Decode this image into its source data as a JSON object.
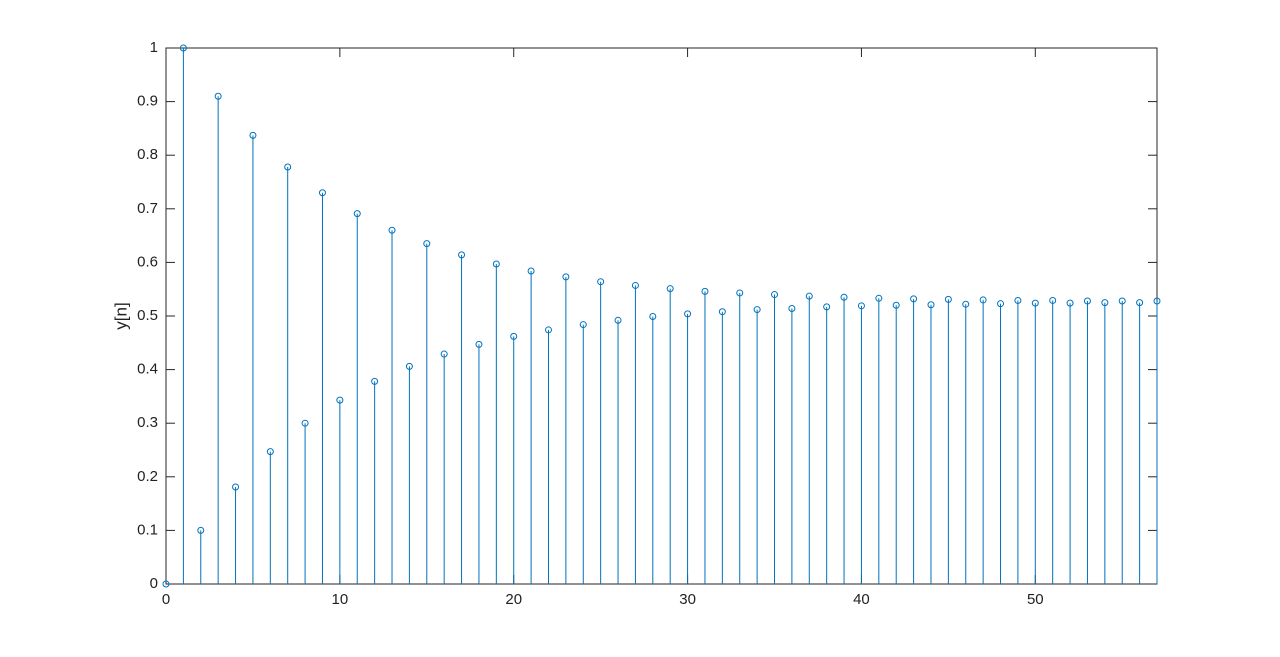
{
  "chart_data": {
    "type": "stem",
    "ylabel": "y[n]",
    "color": "#0072bd",
    "x": [
      0,
      1,
      2,
      3,
      4,
      5,
      6,
      7,
      8,
      9,
      10,
      11,
      12,
      13,
      14,
      15,
      16,
      17,
      18,
      19,
      20,
      21,
      22,
      23,
      24,
      25,
      26,
      27,
      28,
      29,
      30,
      31,
      32,
      33,
      34,
      35,
      36,
      37,
      38,
      39,
      40,
      41,
      42,
      43,
      44,
      45,
      46,
      47,
      48,
      49,
      50,
      51,
      52,
      53,
      54,
      55,
      56,
      57
    ],
    "values": [
      0,
      1,
      0.1,
      0.91,
      0.181,
      0.837,
      0.247,
      0.778,
      0.3,
      0.73,
      0.343,
      0.691,
      0.378,
      0.66,
      0.406,
      0.635,
      0.429,
      0.614,
      0.447,
      0.597,
      0.462,
      0.584,
      0.474,
      0.573,
      0.484,
      0.564,
      0.492,
      0.557,
      0.499,
      0.551,
      0.504,
      0.546,
      0.508,
      0.543,
      0.512,
      0.54,
      0.514,
      0.537,
      0.517,
      0.535,
      0.519,
      0.533,
      0.52,
      0.532,
      0.521,
      0.531,
      0.522,
      0.53,
      0.523,
      0.529,
      0.524,
      0.529,
      0.524,
      0.528,
      0.525,
      0.528,
      0.525,
      0.528
    ],
    "xlim": [
      0,
      57
    ],
    "xticks": [
      0,
      10,
      20,
      30,
      40,
      50
    ],
    "ylim": [
      0,
      1
    ],
    "yticks": [
      0,
      0.1,
      0.2,
      0.3,
      0.4,
      0.5,
      0.6,
      0.7,
      0.8,
      0.9,
      1
    ]
  }
}
